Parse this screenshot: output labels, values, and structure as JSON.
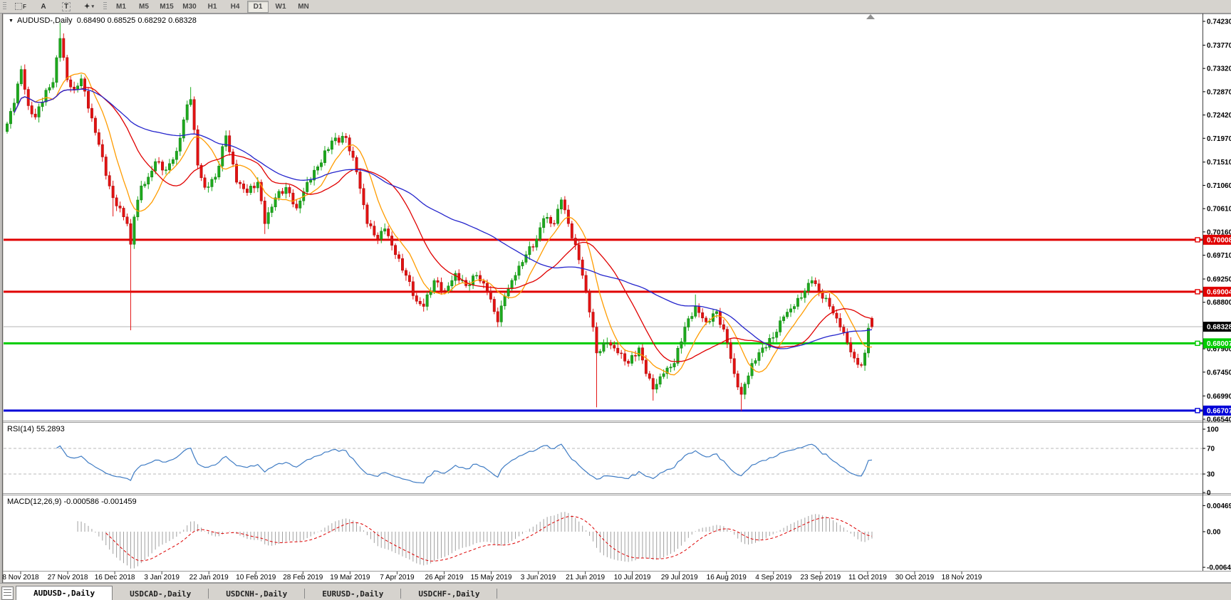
{
  "toolbar": {
    "icons": [
      {
        "name": "grid-f-icon",
        "label": "F"
      },
      {
        "name": "font-a-icon",
        "label": "A"
      },
      {
        "name": "text-t-icon",
        "label": "T"
      },
      {
        "name": "shapes-icon",
        "label": "✦"
      }
    ],
    "timeframes": [
      "M1",
      "M5",
      "M15",
      "M30",
      "H1",
      "H4",
      "D1",
      "W1",
      "MN"
    ],
    "active_timeframe": "D1"
  },
  "chart_header": {
    "dropdown_glyph": "▼",
    "symbol": "AUDUSD-,Daily",
    "ohlc_text": "0.68490 0.68525 0.68292 0.68328"
  },
  "price_axis": {
    "ticks": [
      "0.74230",
      "0.73770",
      "0.73320",
      "0.72870",
      "0.72420",
      "0.71970",
      "0.71510",
      "0.71060",
      "0.70610",
      "0.70160",
      "0.69710",
      "0.69250",
      "0.68800",
      "0.67900",
      "0.67450",
      "0.66990",
      "0.66540"
    ]
  },
  "price_labels": [
    {
      "text": "0.70008",
      "color": "#e00000",
      "text_color": "#ffffff",
      "kind": "resistance-line-label"
    },
    {
      "text": "0.69004",
      "color": "#e00000",
      "text_color": "#ffffff",
      "kind": "resistance-line-label"
    },
    {
      "text": "0.68328",
      "color": "#000000",
      "text_color": "#ffffff",
      "kind": "current-price-label"
    },
    {
      "text": "0.68007",
      "color": "#00cc00",
      "text_color": "#ffffff",
      "kind": "support-line-label"
    },
    {
      "text": "0.66707",
      "color": "#0000d8",
      "text_color": "#ffffff",
      "kind": "support-line-label"
    }
  ],
  "rsi_panel": {
    "name": "RSI(14)",
    "value": "55.2893",
    "ticks": [
      "100",
      "70",
      "30",
      "0"
    ],
    "dashed_levels": [
      70,
      30
    ]
  },
  "macd_panel": {
    "name": "MACD(12,26,9)",
    "values": "-0.000586 -0.001459",
    "ticks": [
      "0.004696",
      "0.00",
      "-0.00642"
    ]
  },
  "date_axis": [
    "8 Nov 2018",
    "27 Nov 2018",
    "16 Dec 2018",
    "3 Jan 2019",
    "22 Jan 2019",
    "10 Feb 2019",
    "28 Feb 2019",
    "19 Mar 2019",
    "7 Apr 2019",
    "26 Apr 2019",
    "15 May 2019",
    "3 Jun 2019",
    "21 Jun 2019",
    "10 Jul 2019",
    "29 Jul 2019",
    "16 Aug 2019",
    "4 Sep 2019",
    "23 Sep 2019",
    "11 Oct 2019",
    "30 Oct 2019",
    "18 Nov 2019"
  ],
  "tabs": {
    "items": [
      "AUDUSD-,Daily",
      "USDCAD-,Daily",
      "USDCNH-,Daily",
      "EURUSD-,Daily",
      "USDCHF-,Daily"
    ],
    "active": "AUDUSD-,Daily"
  },
  "colors": {
    "bull_fill": "#1daa1d",
    "bull_stroke": "#127a12",
    "bear_fill": "#e31212",
    "bear_stroke": "#a50d0d",
    "ma_fast": "#ff9c00",
    "ma_mid": "#e00000",
    "ma_slow": "#2424cc",
    "rsi_line": "#3f7cc4",
    "macd_hist": "#a0a0a0",
    "macd_signal": "#dd0000",
    "current_price_line": "#b4b4b4"
  },
  "chart_data": {
    "type": "candlestick",
    "symbol": "AUDUSD",
    "timeframe": "Daily",
    "current_ohlc": {
      "open": 0.6849,
      "high": 0.68525,
      "low": 0.68292,
      "close": 0.68328
    },
    "y_axis_range": [
      0.6654,
      0.7423
    ],
    "horizontal_levels": [
      {
        "price": 0.70008,
        "color": "#e00000"
      },
      {
        "price": 0.69004,
        "color": "#e00000"
      },
      {
        "price": 0.68007,
        "color": "#00cc00"
      },
      {
        "price": 0.66707,
        "color": "#0000d8"
      }
    ],
    "current_price": 0.68328,
    "moving_averages": [
      {
        "period": 9,
        "color": "#ff9c00"
      },
      {
        "period": 22,
        "color": "#e00000"
      },
      {
        "period": 55,
        "color": "#2424cc"
      }
    ],
    "rsi": {
      "period": 14,
      "current": 55.2893,
      "overbought": 70,
      "oversold": 30
    },
    "macd": {
      "fast": 12,
      "slow": 26,
      "signal": 9,
      "current_macd": -0.000586,
      "current_signal": -0.001459
    },
    "close_anchors": [
      [
        0,
        0.7225
      ],
      [
        2,
        0.7265
      ],
      [
        4,
        0.733
      ],
      [
        6,
        0.726
      ],
      [
        8,
        0.7238
      ],
      [
        11,
        0.729
      ],
      [
        13,
        0.7305
      ],
      [
        15,
        0.739,
        null,
        0.7421
      ],
      [
        17,
        0.731
      ],
      [
        19,
        0.7292
      ],
      [
        21,
        0.7312
      ],
      [
        23,
        0.7255
      ],
      [
        26,
        0.7185
      ],
      [
        28,
        0.7125
      ],
      [
        30,
        0.7082,
        0.7046,
        null
      ],
      [
        32,
        0.7062
      ],
      [
        34,
        0.7032
      ],
      [
        35,
        0.6992,
        0.6826,
        null
      ],
      [
        36,
        0.7045
      ],
      [
        38,
        0.7105
      ],
      [
        40,
        0.7122
      ],
      [
        42,
        0.7152
      ],
      [
        45,
        0.7136
      ],
      [
        48,
        0.7172
      ],
      [
        51,
        0.7262
      ],
      [
        52,
        0.7272,
        null,
        0.7296
      ],
      [
        54,
        0.7145
      ],
      [
        56,
        0.7102
      ],
      [
        59,
        0.7122
      ],
      [
        62,
        0.7202,
        null,
        0.7212
      ],
      [
        65,
        0.7112
      ],
      [
        68,
        0.7092
      ],
      [
        71,
        0.7112
      ],
      [
        73,
        0.7032,
        0.7012,
        null
      ],
      [
        76,
        0.7082
      ],
      [
        79,
        0.7102
      ],
      [
        82,
        0.7062
      ],
      [
        85,
        0.7112
      ],
      [
        88,
        0.7142
      ],
      [
        92,
        0.7192
      ],
      [
        96,
        0.7198,
        null,
        0.7207
      ],
      [
        99,
        0.7132
      ],
      [
        102,
        0.7032
      ],
      [
        105,
        0.7002
      ],
      [
        107,
        0.7022
      ],
      [
        110,
        0.6972
      ],
      [
        113,
        0.6932
      ],
      [
        116,
        0.6882
      ],
      [
        118,
        0.6872,
        0.6862,
        null
      ],
      [
        121,
        0.6922
      ],
      [
        124,
        0.6902
      ],
      [
        127,
        0.6936
      ],
      [
        130,
        0.6912
      ],
      [
        133,
        0.6932
      ],
      [
        136,
        0.6902
      ],
      [
        138,
        0.6862
      ],
      [
        139,
        0.6842,
        0.6832,
        null
      ],
      [
        141,
        0.6892
      ],
      [
        144,
        0.6932
      ],
      [
        147,
        0.6972
      ],
      [
        150,
        0.7002
      ],
      [
        152,
        0.7042,
        null,
        0.7048
      ],
      [
        155,
        0.7032
      ],
      [
        157,
        0.7078,
        null,
        0.7083
      ],
      [
        159,
        0.7032
      ],
      [
        162,
        0.6962
      ],
      [
        164,
        0.6902
      ],
      [
        166,
        0.6832
      ],
      [
        167,
        0.6782,
        0.6677,
        null
      ],
      [
        170,
        0.6802
      ],
      [
        173,
        0.6782
      ],
      [
        176,
        0.6762
      ],
      [
        179,
        0.6792
      ],
      [
        181,
        0.6742
      ],
      [
        183,
        0.6712,
        0.669,
        null
      ],
      [
        186,
        0.6742
      ],
      [
        189,
        0.6762
      ],
      [
        192,
        0.6832
      ],
      [
        195,
        0.6872,
        null,
        0.6895
      ],
      [
        198,
        0.6842
      ],
      [
        201,
        0.6862
      ],
      [
        204,
        0.6802
      ],
      [
        206,
        0.6742
      ],
      [
        208,
        0.6702,
        0.667,
        null
      ],
      [
        211,
        0.6762
      ],
      [
        214,
        0.6792
      ],
      [
        217,
        0.6812
      ],
      [
        220,
        0.6852
      ],
      [
        223,
        0.6872
      ],
      [
        226,
        0.6902
      ],
      [
        228,
        0.6922,
        null,
        0.693
      ],
      [
        230,
        0.6902
      ],
      [
        233,
        0.6872
      ],
      [
        236,
        0.6832
      ],
      [
        238,
        0.6802
      ],
      [
        240,
        0.6772
      ],
      [
        242,
        0.6758,
        0.6754,
        null
      ],
      [
        243,
        0.6782
      ],
      [
        244,
        0.683
      ],
      [
        245,
        0.68328,
        0.68292,
        0.68525
      ]
    ]
  }
}
